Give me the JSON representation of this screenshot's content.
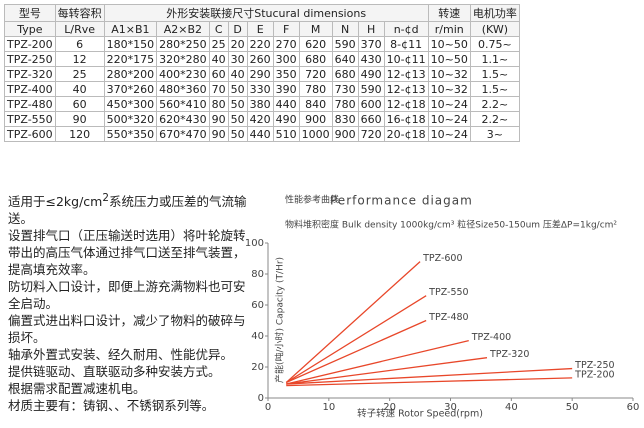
{
  "table": {
    "header1": [
      "型号",
      "每转容积",
      "外形安装联接尺寸Stucural dimensions",
      "转速",
      "电机功率"
    ],
    "header2": [
      "Type",
      "L/Rve",
      "A1×B1",
      "A2×B2",
      "C",
      "D",
      "E",
      "F",
      "M",
      "N",
      "H",
      "n-¢d",
      "r/min",
      "(KW)"
    ],
    "rows": [
      [
        "TPZ-200",
        "6",
        "180*150",
        "280*250",
        "25",
        "20",
        "220",
        "270",
        "620",
        "590",
        "370",
        "8-¢11",
        "10~50",
        "0.75~"
      ],
      [
        "TPZ-250",
        "12",
        "220*175",
        "320*280",
        "40",
        "30",
        "260",
        "300",
        "680",
        "640",
        "430",
        "10-¢11",
        "10~50",
        "1.1~"
      ],
      [
        "TPZ-320",
        "25",
        "280*200",
        "400*230",
        "60",
        "40",
        "290",
        "350",
        "720",
        "680",
        "490",
        "12-¢13",
        "10~32",
        "1.5~"
      ],
      [
        "TPZ-400",
        "40",
        "370*260",
        "480*360",
        "70",
        "50",
        "330",
        "390",
        "780",
        "730",
        "590",
        "12-¢13",
        "10~32",
        "1.5~"
      ],
      [
        "TPZ-480",
        "60",
        "450*300",
        "560*410",
        "80",
        "50",
        "380",
        "440",
        "840",
        "780",
        "600",
        "12-¢18",
        "10~24",
        "2.2~"
      ],
      [
        "TPZ-550",
        "90",
        "500*320",
        "620*430",
        "90",
        "50",
        "420",
        "490",
        "900",
        "830",
        "660",
        "16-¢18",
        "10~24",
        "2.2~"
      ],
      [
        "TPZ-600",
        "120",
        "550*350",
        "670*470",
        "90",
        "50",
        "440",
        "510",
        "1000",
        "900",
        "720",
        "20-¢18",
        "10~24",
        "3~"
      ]
    ]
  },
  "notes": {
    "first": [
      "适用于≤2kg/cm",
      "2",
      "系统压力或压差的气流输送。"
    ],
    "lines": [
      "设置排气口（正压输送时选用）将叶轮旋转带出的高压气体通过排气口送至排气装置，提高填充效率。",
      "防切料入口设计，即便上游充满物料也可安全启动。",
      "偏置式进出料口设计，减少了物料的破碎与损坏。",
      "轴承外置式安装、经久耐用、性能优异。",
      "提供链驱动、直联驱动多种安装方式。",
      "根据需求配置减速机电。",
      "材质主要有：铸钢、、不锈钢系列等。"
    ]
  },
  "chart_data": {
    "type": "line",
    "title_cn": "性能参考曲线",
    "title": "Performance diagam",
    "subtitle": "物料堆积密度 Bulk density 1000kg/cm³   粒径Size50-150um   压差ΔP=1kg/cm²",
    "ylabel": "产能(吨/小时) Capacity (T/Hr)",
    "xlabel": "转子转速 Rotor Speed(rpm)",
    "xlim": [
      0,
      60
    ],
    "xticks": [
      0,
      10,
      20,
      30,
      40,
      50,
      60
    ],
    "ylim": [
      0,
      100
    ],
    "yticks": [
      0,
      20,
      40,
      60,
      80,
      100
    ],
    "series": [
      {
        "name": "TPZ-600",
        "color": "#e8472a",
        "x": [
          3,
          25
        ],
        "values": [
          10,
          88
        ]
      },
      {
        "name": "TPZ-550",
        "color": "#e8472a",
        "x": [
          3,
          26
        ],
        "values": [
          10,
          66
        ]
      },
      {
        "name": "TPZ-480",
        "color": "#e8472a",
        "x": [
          3,
          26
        ],
        "values": [
          10,
          50
        ]
      },
      {
        "name": "TPZ-400",
        "color": "#e8472a",
        "x": [
          3,
          33
        ],
        "values": [
          9,
          37
        ]
      },
      {
        "name": "TPZ-320",
        "color": "#e8472a",
        "x": [
          3,
          36
        ],
        "values": [
          9,
          26
        ]
      },
      {
        "name": "TPZ-250",
        "color": "#e8472a",
        "x": [
          3,
          50
        ],
        "values": [
          9,
          19
        ]
      },
      {
        "name": "TPZ-200",
        "color": "#e8472a",
        "x": [
          3,
          50
        ],
        "values": [
          8,
          13
        ]
      }
    ]
  }
}
